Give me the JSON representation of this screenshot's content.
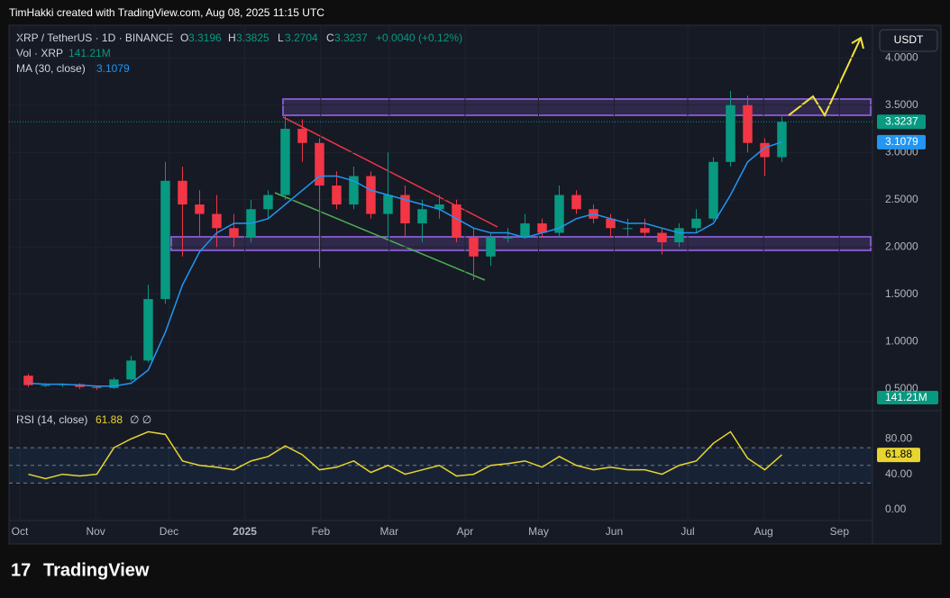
{
  "header": {
    "credit": "TimHakki created with TradingView.com, Aug 08, 2025 11:15 UTC",
    "brand": "TradingView"
  },
  "chart_data": {
    "type": "candlestick",
    "title": "XRP / TetherUS · 1D · BINANCE",
    "currency": "USDT",
    "legend": {
      "open_label": "O",
      "open": 3.3196,
      "high_label": "H",
      "high": 3.3825,
      "low_label": "L",
      "low": 3.2704,
      "close_label": "C",
      "close": 3.3237,
      "change": "+0.0040 (+0.12%)",
      "volume_name": "Vol · XRP",
      "volume": "141.21M"
    },
    "up_color": "#089981",
    "down_color": "#f23645",
    "categories": [
      null,
      null,
      null,
      null,
      null,
      null,
      null,
      null,
      null,
      null,
      null,
      null,
      null,
      null,
      null,
      null,
      null,
      null,
      null,
      null,
      null,
      null,
      null,
      null,
      null,
      null,
      null,
      null,
      null,
      null,
      null,
      null,
      null,
      null,
      null,
      null,
      null,
      null,
      null,
      null,
      null,
      null,
      null,
      null,
      null
    ],
    "open": [
      0.64,
      0.54,
      0.54,
      0.55,
      0.52,
      0.51,
      0.6,
      0.8,
      1.45,
      2.7,
      2.45,
      2.35,
      2.2,
      2.1,
      2.4,
      2.55,
      3.25,
      3.1,
      2.65,
      2.45,
      2.75,
      2.35,
      2.55,
      2.25,
      2.4,
      2.45,
      2.1,
      1.9,
      2.1,
      2.1,
      2.25,
      2.15,
      2.55,
      2.4,
      2.3,
      2.2,
      2.2,
      2.15,
      2.05,
      2.2,
      2.3,
      2.9,
      3.5,
      3.1,
      2.95
    ],
    "high": [
      0.66,
      0.56,
      0.56,
      0.56,
      0.53,
      0.62,
      0.85,
      1.6,
      2.9,
      2.85,
      2.6,
      2.55,
      2.35,
      2.5,
      2.6,
      3.4,
      3.35,
      3.15,
      2.8,
      2.85,
      2.8,
      3.0,
      2.65,
      2.5,
      2.55,
      2.5,
      2.2,
      2.15,
      2.2,
      2.35,
      2.3,
      2.65,
      2.6,
      2.45,
      2.35,
      2.3,
      2.3,
      2.2,
      2.25,
      2.4,
      2.95,
      3.65,
      3.6,
      3.15,
      3.38
    ],
    "low": [
      0.52,
      0.52,
      0.52,
      0.5,
      0.49,
      0.5,
      0.58,
      0.78,
      1.4,
      1.9,
      2.1,
      2.0,
      2.0,
      2.05,
      2.3,
      2.5,
      2.9,
      1.78,
      2.4,
      2.4,
      2.3,
      2.1,
      2.1,
      2.05,
      2.3,
      2.05,
      1.65,
      1.8,
      2.05,
      2.1,
      2.1,
      2.1,
      2.35,
      2.25,
      2.1,
      2.1,
      2.1,
      1.92,
      2.0,
      2.15,
      2.28,
      2.85,
      3.0,
      2.75,
      2.9
    ],
    "close": [
      0.54,
      0.54,
      0.55,
      0.52,
      0.51,
      0.6,
      0.8,
      1.45,
      2.7,
      2.45,
      2.35,
      2.2,
      2.1,
      2.4,
      2.55,
      3.25,
      3.1,
      2.65,
      2.45,
      2.75,
      2.35,
      2.55,
      2.25,
      2.4,
      2.45,
      2.1,
      1.9,
      2.1,
      2.1,
      2.25,
      2.15,
      2.55,
      2.4,
      2.3,
      2.2,
      2.2,
      2.15,
      2.05,
      2.2,
      2.3,
      2.9,
      3.5,
      3.1,
      2.95,
      3.3237
    ],
    "ma": {
      "name": "MA (30, close)",
      "color": "#2196f3",
      "last": 3.1079,
      "values": [
        0.56,
        0.55,
        0.55,
        0.54,
        0.53,
        0.53,
        0.56,
        0.7,
        1.1,
        1.6,
        1.95,
        2.15,
        2.25,
        2.25,
        2.3,
        2.45,
        2.6,
        2.75,
        2.75,
        2.7,
        2.6,
        2.55,
        2.5,
        2.45,
        2.4,
        2.3,
        2.2,
        2.15,
        2.15,
        2.1,
        2.15,
        2.2,
        2.3,
        2.35,
        2.3,
        2.25,
        2.25,
        2.2,
        2.15,
        2.15,
        2.25,
        2.55,
        2.9,
        3.05,
        3.11
      ]
    },
    "xlim": [
      -1.13,
      49.29
    ],
    "xticks": [
      {
        "value": -0.5,
        "label": "Oct"
      },
      {
        "value": 3.93,
        "label": "Nov"
      },
      {
        "value": 8.21,
        "label": "Dec"
      },
      {
        "value": 12.64,
        "label": "2025"
      },
      {
        "value": 17.07,
        "label": "Feb"
      },
      {
        "value": 21.07,
        "label": "Mar"
      },
      {
        "value": 25.5,
        "label": "Apr"
      },
      {
        "value": 29.79,
        "label": "May"
      },
      {
        "value": 34.21,
        "label": "Jun"
      },
      {
        "value": 38.5,
        "label": "Jul"
      },
      {
        "value": 42.93,
        "label": "Aug"
      },
      {
        "value": 47.36,
        "label": "Sep"
      }
    ],
    "ylim": [
      0.27,
      4.345
    ],
    "yticks": [
      {
        "value": 0.5,
        "label": "0.5000"
      },
      {
        "value": 1,
        "label": "1.0000"
      },
      {
        "value": 1.5,
        "label": "1.5000"
      },
      {
        "value": 2,
        "label": "2.0000"
      },
      {
        "value": 2.5,
        "label": "2.5000"
      },
      {
        "value": 3,
        "label": "3.0000"
      },
      {
        "value": 3.5,
        "label": "3.5000"
      },
      {
        "value": 4,
        "label": "4.0000"
      }
    ],
    "rsi": {
      "name": "RSI (14, close)",
      "color": "#e8d530",
      "last": 61.88,
      "marks": "∅ ∅",
      "ylim": [
        -12.3,
        111.8
      ],
      "yticks": [
        {
          "value": 0,
          "label": "0.00"
        },
        {
          "value": 40,
          "label": "40.00"
        },
        {
          "value": 80,
          "label": "80.00"
        }
      ],
      "levels": [
        70,
        50,
        30
      ],
      "values": [
        40,
        35,
        40,
        38,
        40,
        70,
        80,
        88,
        85,
        55,
        50,
        48,
        45,
        55,
        60,
        72,
        62,
        45,
        48,
        55,
        42,
        50,
        40,
        45,
        50,
        38,
        40,
        50,
        52,
        55,
        48,
        60,
        50,
        45,
        48,
        45,
        45,
        40,
        50,
        55,
        75,
        88,
        58,
        45,
        62
      ]
    }
  }
}
